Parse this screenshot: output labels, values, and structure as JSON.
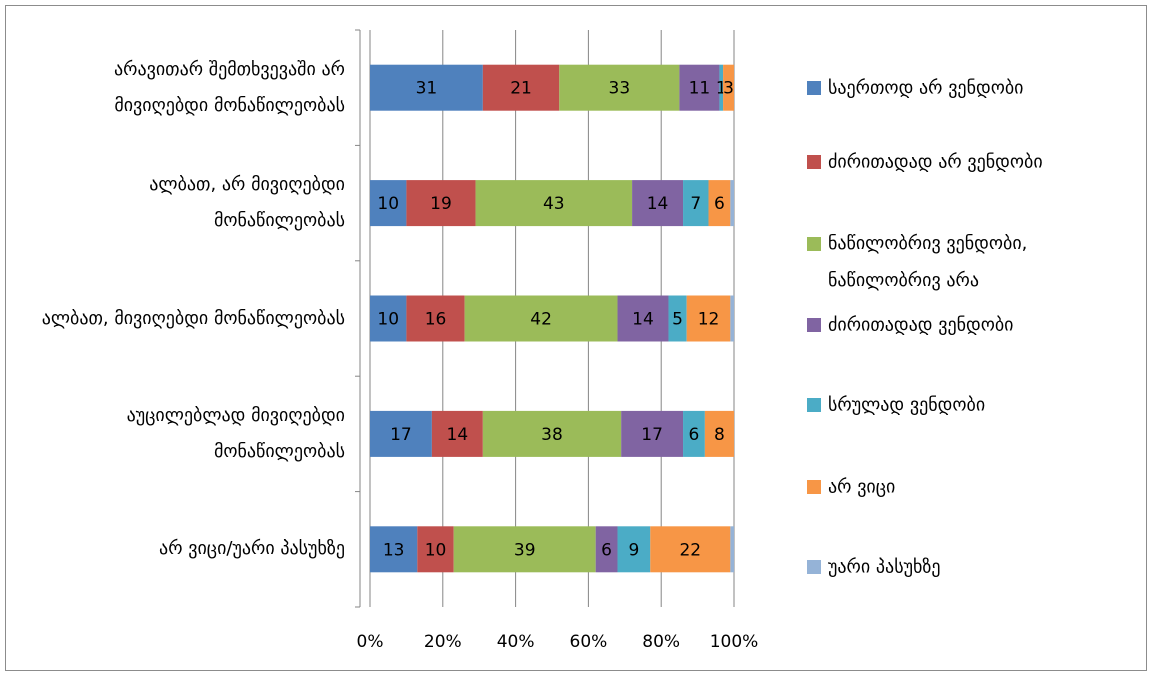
{
  "chart_data": {
    "type": "bar",
    "orientation": "horizontal",
    "stacked": true,
    "categories": [
      "არავითარ შემთხვევაში არ მივიღებდი მონაწილეობას",
      "ალბათ, არ მივიღებდი მონაწილეობას",
      "ალბათ, მივიღებდი მონაწილეობას",
      "აუცილებლად მივიღებდი მონაწილეობას",
      "არ ვიცი/უარი პასუხზე"
    ],
    "series": [
      {
        "name": "საერთოდ არ ვენდობი",
        "color": "#4f81bd",
        "values": [
          31,
          10,
          10,
          17,
          13
        ],
        "data_labels": true
      },
      {
        "name": "ძირითადად არ ვენდობი",
        "color": "#c0504d",
        "values": [
          21,
          19,
          16,
          14,
          10
        ],
        "data_labels": true
      },
      {
        "name": "ნაწილობრივ ვენდობი, ნაწილობრივ არა",
        "color": "#9bbb59",
        "values": [
          33,
          43,
          42,
          38,
          39
        ],
        "data_labels": true
      },
      {
        "name": "ძირითადად ვენდობი",
        "color": "#8064a2",
        "values": [
          11,
          14,
          14,
          17,
          6
        ],
        "data_labels": true
      },
      {
        "name": "სრულად ვენდობი",
        "color": "#4bacc6",
        "values": [
          1,
          7,
          5,
          6,
          9
        ],
        "data_labels": true
      },
      {
        "name": "არ ვიცი",
        "color": "#f79646",
        "values": [
          3,
          6,
          12,
          8,
          22
        ],
        "data_labels": true
      },
      {
        "name": "უარი პასუხზე",
        "color": "#95b3d7",
        "values": [
          0,
          1,
          1,
          0,
          1
        ],
        "data_labels": false
      }
    ],
    "xlim": [
      0,
      100
    ],
    "xticks": [
      {
        "value": 0,
        "label": "0%"
      },
      {
        "value": 20,
        "label": "20%"
      },
      {
        "value": 40,
        "label": "40%"
      },
      {
        "value": 60,
        "label": "60%"
      },
      {
        "value": 80,
        "label": "80%"
      },
      {
        "value": 100,
        "label": "100%"
      }
    ],
    "grid": true,
    "legend": "right"
  }
}
